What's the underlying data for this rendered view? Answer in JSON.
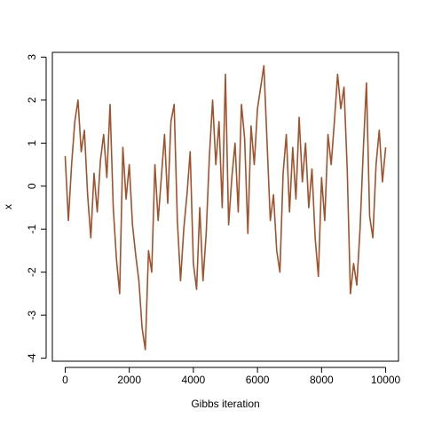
{
  "chart_data": {
    "type": "line",
    "x_label": "Gibbs iteration",
    "y_label": "x",
    "x": [
      0,
      100,
      200,
      300,
      400,
      500,
      600,
      700,
      800,
      900,
      1000,
      1100,
      1200,
      1300,
      1400,
      1500,
      1600,
      1700,
      1800,
      1900,
      2000,
      2100,
      2200,
      2300,
      2400,
      2500,
      2600,
      2700,
      2800,
      2900,
      3000,
      3100,
      3200,
      3300,
      3400,
      3500,
      3600,
      3700,
      3800,
      3900,
      4000,
      4100,
      4200,
      4300,
      4400,
      4500,
      4600,
      4700,
      4800,
      4900,
      5000,
      5100,
      5200,
      5300,
      5400,
      5500,
      5600,
      5700,
      5800,
      5900,
      6000,
      6100,
      6200,
      6300,
      6400,
      6500,
      6600,
      6700,
      6800,
      6900,
      7000,
      7100,
      7200,
      7300,
      7400,
      7500,
      7600,
      7700,
      7800,
      7900,
      8000,
      8100,
      8200,
      8300,
      8400,
      8500,
      8600,
      8700,
      8800,
      8900,
      9000,
      9100,
      9200,
      9300,
      9400,
      9500,
      9600,
      9700,
      9800,
      9900,
      10000
    ],
    "series": [
      {
        "color": "#a0522d",
        "values": [
          0.7,
          -0.8,
          0.5,
          1.5,
          2.0,
          0.8,
          1.3,
          -0.2,
          -1.2,
          0.3,
          -0.6,
          0.6,
          1.2,
          0.2,
          1.9,
          -0.5,
          -1.7,
          -2.5,
          0.9,
          -0.3,
          0.5,
          -0.9,
          -1.6,
          -2.2,
          -3.3,
          -3.8,
          -1.5,
          -2.0,
          0.5,
          -0.8,
          0.2,
          1.2,
          -0.4,
          1.5,
          1.9,
          -0.8,
          -2.2,
          -1.0,
          -0.2,
          0.8,
          -1.8,
          -2.4,
          -0.5,
          -2.2,
          -1.1,
          0.7,
          2.0,
          0.5,
          1.5,
          -0.5,
          2.6,
          -0.9,
          0.2,
          1.0,
          -0.6,
          1.9,
          1.1,
          -1.1,
          1.4,
          0.5,
          1.8,
          2.3,
          2.8,
          1.0,
          -0.8,
          -0.2,
          -1.5,
          -2.0,
          0.3,
          1.2,
          -0.6,
          0.9,
          -0.3,
          1.6,
          0.1,
          1.0,
          -0.5,
          0.4,
          -1.2,
          -2.1,
          0.2,
          -0.8,
          1.2,
          0.5,
          1.5,
          2.6,
          1.8,
          2.3,
          0.4,
          -2.5,
          -1.8,
          -2.3,
          -1.0,
          0.8,
          2.4,
          -0.7,
          -1.2,
          0.5,
          1.3,
          0.1,
          0.9
        ]
      }
    ],
    "xlim": [
      -400,
      10400
    ],
    "xticks": [
      0,
      2000,
      4000,
      6000,
      8000,
      10000
    ],
    "ylim": [
      -4.07,
      3.11
    ],
    "yticks": [
      -4,
      -3,
      -2,
      -1,
      0,
      1,
      2,
      3
    ]
  }
}
